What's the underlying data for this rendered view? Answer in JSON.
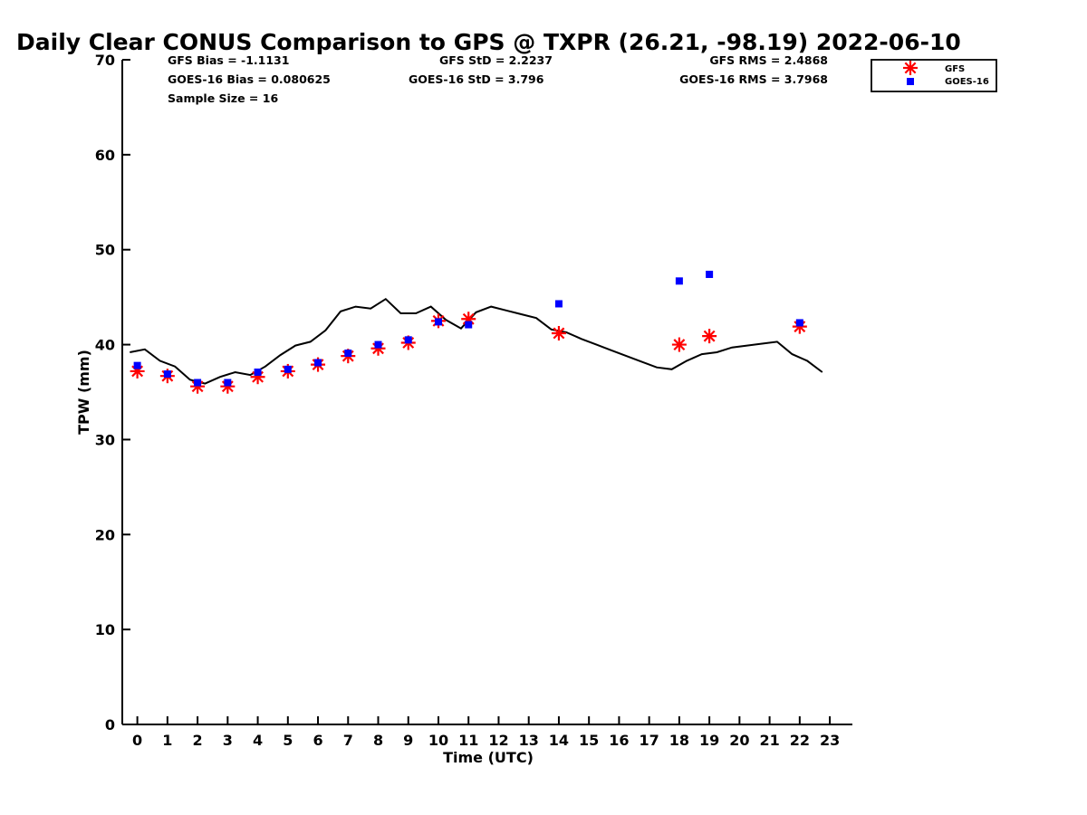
{
  "stats": {
    "gfs_bias": "GFS Bias = -1.1131",
    "goes_bias": "GOES-16 Bias = 0.080625",
    "sample_size": "Sample Size = 16",
    "gfs_std": "GFS StD = 2.2237",
    "goes_std": "GOES-16 StD = 3.796",
    "gfs_rms": "GFS RMS = 2.4868",
    "goes_rms": "GOES-16 RMS = 3.7968"
  },
  "colors": {
    "gfs": "#ff0000",
    "goes": "#0000ff",
    "gps": "#000000"
  },
  "chart_data": {
    "type": "scatter",
    "title": "Daily Clear CONUS Comparison to GPS @ TXPR (26.21, -98.19) 2022-06-10",
    "xlabel": "Time (UTC)",
    "ylabel": "TPW (mm)",
    "xlim": [
      -0.5,
      23.75
    ],
    "ylim": [
      0,
      70
    ],
    "xticks": [
      0,
      1,
      2,
      3,
      4,
      5,
      6,
      7,
      8,
      9,
      10,
      11,
      12,
      13,
      14,
      15,
      16,
      17,
      18,
      19,
      20,
      21,
      22,
      23
    ],
    "yticks": [
      0,
      10,
      20,
      30,
      40,
      50,
      60,
      70
    ],
    "grid": false,
    "legend_position": "top-right",
    "series": [
      {
        "name": "GFS",
        "marker": "asterisk",
        "x": [
          0,
          1,
          2,
          3,
          4,
          5,
          6,
          7,
          8,
          9,
          10,
          11,
          14,
          18,
          19,
          22
        ],
        "y": [
          37.2,
          36.7,
          35.6,
          35.6,
          36.6,
          37.2,
          37.9,
          38.8,
          39.6,
          40.2,
          42.5,
          42.7,
          41.2,
          40.0,
          40.9,
          41.9
        ]
      },
      {
        "name": "GOES-16",
        "marker": "square",
        "x": [
          0,
          1,
          2,
          3,
          4,
          5,
          6,
          7,
          8,
          9,
          10,
          11,
          14,
          18,
          19,
          22
        ],
        "y": [
          37.8,
          36.9,
          36.0,
          36.0,
          37.1,
          37.4,
          38.1,
          39.1,
          40.0,
          40.5,
          42.4,
          42.1,
          44.3,
          46.7,
          47.4,
          42.3
        ]
      },
      {
        "x": [
          -0.25,
          0.25,
          0.75,
          1.25,
          1.75,
          2.25,
          2.75,
          3.25,
          3.75,
          4.25,
          4.75,
          5.25,
          5.75,
          6.25,
          6.75,
          7.25,
          7.75,
          8.25,
          8.75,
          9.25,
          9.75,
          10.25,
          10.75,
          11.25,
          11.75,
          12.25,
          12.75,
          13.25,
          13.75,
          14.25,
          14.75,
          15.25,
          15.75,
          16.25,
          16.75,
          17.25,
          17.75,
          18.25,
          18.75,
          19.25,
          19.75,
          20.25,
          20.75,
          21.25,
          21.75,
          22.25,
          22.75
        ],
        "y": [
          39.2,
          39.5,
          38.3,
          37.7,
          36.3,
          35.9,
          36.6,
          37.1,
          36.8,
          37.7,
          38.9,
          39.9,
          40.3,
          41.5,
          43.5,
          44.0,
          43.8,
          44.8,
          43.3,
          43.3,
          44.0,
          42.6,
          41.7,
          43.4,
          44.0,
          43.6,
          43.2,
          42.8,
          41.6,
          41.3,
          40.6,
          40.0,
          39.4,
          38.8,
          38.2,
          37.6,
          37.4,
          38.3,
          39.0,
          39.2,
          39.7,
          39.9,
          40.1,
          40.3,
          39.0,
          38.3,
          37.1
        ]
      }
    ]
  }
}
